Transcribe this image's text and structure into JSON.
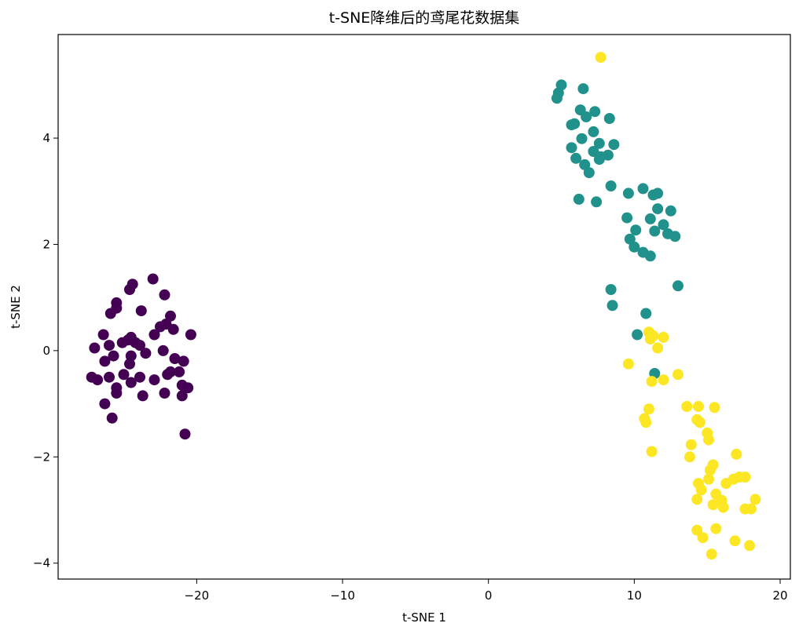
{
  "chart_data": {
    "type": "scatter",
    "title": "t-SNE降维后的鸢尾花数据集",
    "xlabel": "t-SNE 1",
    "ylabel": "t-SNE 2",
    "xlim": [
      -29.5,
      20.7
    ],
    "ylim": [
      -4.3,
      5.95
    ],
    "xticks": [
      -20,
      -10,
      0,
      10,
      20
    ],
    "xtick_labels": [
      "−20",
      "−10",
      "0",
      "10",
      "20"
    ],
    "yticks": [
      -4,
      -2,
      0,
      2,
      4
    ],
    "ytick_labels": [
      "−4",
      "−2",
      "0",
      "2",
      "4"
    ],
    "grid": false,
    "legend": "none",
    "colors": [
      "#440154",
      "#21918c",
      "#fde725"
    ],
    "series": [
      {
        "color": "#440154",
        "points": [
          [
            -23.0,
            1.35
          ],
          [
            -24.4,
            1.25
          ],
          [
            -24.6,
            1.15
          ],
          [
            -22.2,
            1.05
          ],
          [
            -25.5,
            0.9
          ],
          [
            -25.5,
            0.8
          ],
          [
            -23.8,
            0.75
          ],
          [
            -25.9,
            0.7
          ],
          [
            -21.8,
            0.65
          ],
          [
            -22.1,
            0.5
          ],
          [
            -22.5,
            0.45
          ],
          [
            -21.6,
            0.4
          ],
          [
            -22.9,
            0.3
          ],
          [
            -26.4,
            0.3
          ],
          [
            -20.4,
            0.3
          ],
          [
            -24.5,
            0.25
          ],
          [
            -24.7,
            0.2
          ],
          [
            -24.2,
            0.15
          ],
          [
            -25.1,
            0.15
          ],
          [
            -23.9,
            0.1
          ],
          [
            -26.0,
            0.1
          ],
          [
            -27.0,
            0.05
          ],
          [
            -22.3,
            0.0
          ],
          [
            -23.5,
            -0.05
          ],
          [
            -25.7,
            -0.1
          ],
          [
            -24.5,
            -0.1
          ],
          [
            -21.5,
            -0.15
          ],
          [
            -20.9,
            -0.2
          ],
          [
            -26.3,
            -0.2
          ],
          [
            -24.6,
            -0.25
          ],
          [
            -21.8,
            -0.4
          ],
          [
            -21.2,
            -0.4
          ],
          [
            -22.0,
            -0.45
          ],
          [
            -25.0,
            -0.45
          ],
          [
            -27.2,
            -0.5
          ],
          [
            -23.9,
            -0.5
          ],
          [
            -26.0,
            -0.5
          ],
          [
            -26.8,
            -0.55
          ],
          [
            -22.9,
            -0.55
          ],
          [
            -24.5,
            -0.6
          ],
          [
            -21.0,
            -0.65
          ],
          [
            -25.5,
            -0.7
          ],
          [
            -20.6,
            -0.7
          ],
          [
            -25.5,
            -0.8
          ],
          [
            -22.2,
            -0.8
          ],
          [
            -21.0,
            -0.85
          ],
          [
            -23.7,
            -0.85
          ],
          [
            -26.3,
            -1.0
          ],
          [
            -25.8,
            -1.27
          ],
          [
            -20.8,
            -1.57
          ]
        ]
      },
      {
        "color": "#21918c",
        "points": [
          [
            5.0,
            5.0
          ],
          [
            4.8,
            4.85
          ],
          [
            4.7,
            4.75
          ],
          [
            6.5,
            4.93
          ],
          [
            6.3,
            4.53
          ],
          [
            7.3,
            4.5
          ],
          [
            6.7,
            4.4
          ],
          [
            8.3,
            4.37
          ],
          [
            5.9,
            4.27
          ],
          [
            5.7,
            4.25
          ],
          [
            7.2,
            4.12
          ],
          [
            6.4,
            3.99
          ],
          [
            7.6,
            3.9
          ],
          [
            8.6,
            3.88
          ],
          [
            5.7,
            3.82
          ],
          [
            7.2,
            3.75
          ],
          [
            8.2,
            3.68
          ],
          [
            7.7,
            3.65
          ],
          [
            6.0,
            3.62
          ],
          [
            7.6,
            3.6
          ],
          [
            6.6,
            3.5
          ],
          [
            6.9,
            3.35
          ],
          [
            8.4,
            3.1
          ],
          [
            10.6,
            3.05
          ],
          [
            9.6,
            2.96
          ],
          [
            11.6,
            2.96
          ],
          [
            11.3,
            2.93
          ],
          [
            6.2,
            2.85
          ],
          [
            7.4,
            2.8
          ],
          [
            11.6,
            2.67
          ],
          [
            12.5,
            2.63
          ],
          [
            9.5,
            2.5
          ],
          [
            11.1,
            2.48
          ],
          [
            12.0,
            2.37
          ],
          [
            10.1,
            2.27
          ],
          [
            11.4,
            2.25
          ],
          [
            12.3,
            2.2
          ],
          [
            12.8,
            2.15
          ],
          [
            9.7,
            2.1
          ],
          [
            10.0,
            1.95
          ],
          [
            10.6,
            1.85
          ],
          [
            11.1,
            1.78
          ],
          [
            13.0,
            1.22
          ],
          [
            8.4,
            1.15
          ],
          [
            8.5,
            0.85
          ],
          [
            10.8,
            0.7
          ],
          [
            10.2,
            0.3
          ],
          [
            11.4,
            -0.43
          ]
        ]
      },
      {
        "color": "#fde725",
        "points": [
          [
            7.7,
            5.52
          ],
          [
            11.0,
            0.35
          ],
          [
            11.3,
            0.28
          ],
          [
            11.1,
            0.22
          ],
          [
            12.0,
            0.25
          ],
          [
            11.6,
            0.05
          ],
          [
            9.6,
            -0.25
          ],
          [
            13.0,
            -0.45
          ],
          [
            12.0,
            -0.55
          ],
          [
            11.2,
            -0.58
          ],
          [
            13.6,
            -1.05
          ],
          [
            14.4,
            -1.05
          ],
          [
            15.5,
            -1.07
          ],
          [
            11.0,
            -1.1
          ],
          [
            10.7,
            -1.28
          ],
          [
            10.8,
            -1.35
          ],
          [
            14.3,
            -1.3
          ],
          [
            14.5,
            -1.35
          ],
          [
            15.0,
            -1.55
          ],
          [
            13.9,
            -1.77
          ],
          [
            15.1,
            -1.68
          ],
          [
            11.2,
            -1.9
          ],
          [
            17.0,
            -1.95
          ],
          [
            13.8,
            -2.0
          ],
          [
            15.4,
            -2.15
          ],
          [
            15.2,
            -2.25
          ],
          [
            15.1,
            -2.42
          ],
          [
            14.4,
            -2.5
          ],
          [
            16.3,
            -2.5
          ],
          [
            16.8,
            -2.42
          ],
          [
            17.2,
            -2.38
          ],
          [
            17.6,
            -2.38
          ],
          [
            14.6,
            -2.62
          ],
          [
            15.6,
            -2.7
          ],
          [
            14.3,
            -2.8
          ],
          [
            16.0,
            -2.82
          ],
          [
            18.3,
            -2.8
          ],
          [
            15.4,
            -2.9
          ],
          [
            16.1,
            -2.95
          ],
          [
            17.6,
            -2.98
          ],
          [
            18.0,
            -2.98
          ],
          [
            14.3,
            -3.38
          ],
          [
            15.6,
            -3.35
          ],
          [
            14.7,
            -3.52
          ],
          [
            16.9,
            -3.58
          ],
          [
            17.9,
            -3.67
          ],
          [
            15.3,
            -3.83
          ]
        ]
      }
    ]
  }
}
